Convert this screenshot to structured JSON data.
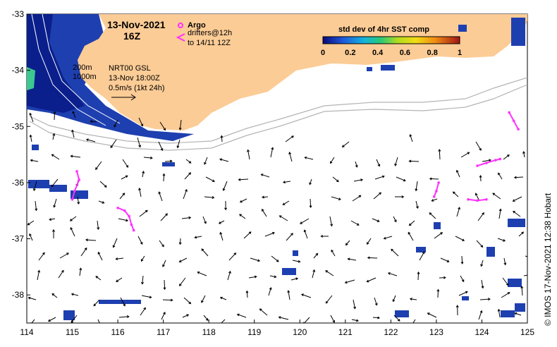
{
  "title": {
    "date": "13-Nov-2021",
    "time": "16Z"
  },
  "legend": {
    "argo_label": "Argo",
    "drifters_label": "drifters@12h",
    "drifters_sub": "to 14/11 12Z",
    "isobath_200": "200m",
    "isobath_1000": "1000m",
    "current_source": "NRT00 GSL",
    "current_time": "13-Nov 18:00Z",
    "current_scale": "0.5m/s (1kt 24h)"
  },
  "colorbar": {
    "title": "std dev of 4hr SST comp",
    "ticks": [
      "0",
      "0.2",
      "0.4",
      "0.6",
      "0.8",
      "1"
    ],
    "min": 0,
    "max": 1
  },
  "axes": {
    "lon_ticks": [
      "114",
      "115",
      "116",
      "117",
      "118",
      "119",
      "120",
      "121",
      "122",
      "123",
      "124",
      "125"
    ],
    "lat_ticks": [
      "-33",
      "-34",
      "-35",
      "-36",
      "-37",
      "-38"
    ],
    "lon_range": [
      114,
      125
    ],
    "lat_range": [
      -38.5,
      -33
    ]
  },
  "credit": "© IMOS 17-Nov-2021 12:38 Hobart",
  "colors": {
    "land": "#fccc96",
    "drifter": "#ff30ff",
    "argo": "#ff30ff",
    "isobath": "#b4b4b4",
    "sst_low": "#0a1f8c",
    "sst_mid": "#2a52c8",
    "arrow": "#000000"
  },
  "drifter_tracks": [
    {
      "name": "drifter-1",
      "points": [
        [
          115.1,
          -35.8
        ],
        [
          115.15,
          -35.95
        ],
        [
          115.05,
          -36.15
        ],
        [
          115.0,
          -36.3
        ]
      ]
    },
    {
      "name": "drifter-2",
      "points": [
        [
          116.0,
          -36.45
        ],
        [
          116.15,
          -36.5
        ],
        [
          116.25,
          -36.6
        ],
        [
          116.3,
          -36.75
        ],
        [
          116.35,
          -36.85
        ]
      ]
    },
    {
      "name": "drifter-3",
      "points": [
        [
          123.05,
          -36.0
        ],
        [
          123.0,
          -36.15
        ],
        [
          122.95,
          -36.25
        ]
      ]
    },
    {
      "name": "drifter-4",
      "points": [
        [
          123.9,
          -35.7
        ],
        [
          124.1,
          -35.65
        ],
        [
          124.3,
          -35.6
        ],
        [
          124.4,
          -35.58
        ]
      ]
    },
    {
      "name": "drifter-5",
      "points": [
        [
          123.7,
          -36.3
        ],
        [
          123.9,
          -36.32
        ],
        [
          124.1,
          -36.3
        ]
      ]
    },
    {
      "name": "drifter-6",
      "points": [
        [
          124.6,
          -34.75
        ],
        [
          124.7,
          -34.9
        ],
        [
          124.8,
          -35.05
        ]
      ]
    }
  ]
}
